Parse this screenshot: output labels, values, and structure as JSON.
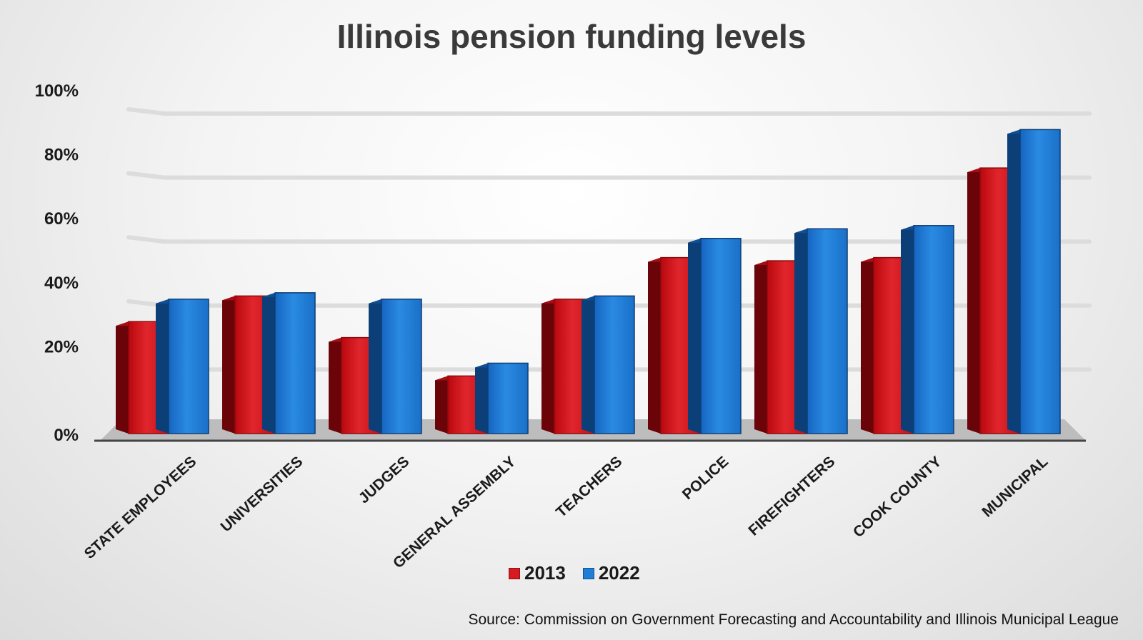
{
  "colors": {
    "series_2013": "#d71920",
    "series_2022": "#1f7fd6",
    "gridline": "#dcdcdc",
    "floor": "#bdbdbd"
  },
  "chart_data": {
    "type": "bar",
    "title": "Illinois pension funding levels",
    "categories": [
      "STATE EMPLOYEES",
      "UNIVERSITIES",
      "JUDGES",
      "GENERAL ASSEMBLY",
      "TEACHERS",
      "POLICE",
      "FIREFIGHTERS",
      "COOK COUNTY",
      "MUNICIPAL"
    ],
    "series": [
      {
        "name": "2013",
        "values": [
          35,
          43,
          30,
          18,
          42,
          55,
          54,
          55,
          83
        ]
      },
      {
        "name": "2022",
        "values": [
          42,
          44,
          42,
          22,
          43,
          61,
          64,
          65,
          95
        ]
      }
    ],
    "ylim": [
      0,
      100
    ],
    "yticks": [
      "0%",
      "20%",
      "40%",
      "60%",
      "80%",
      "100%"
    ],
    "ytick_values": [
      0,
      20,
      40,
      60,
      80,
      100
    ],
    "grid": true,
    "legend_position": "bottom",
    "xlabel": "",
    "ylabel": "",
    "style": "3d-clustered-bar"
  },
  "source_note": "Source: Commission on Government Forecasting and Accountability and Illinois Municipal League"
}
